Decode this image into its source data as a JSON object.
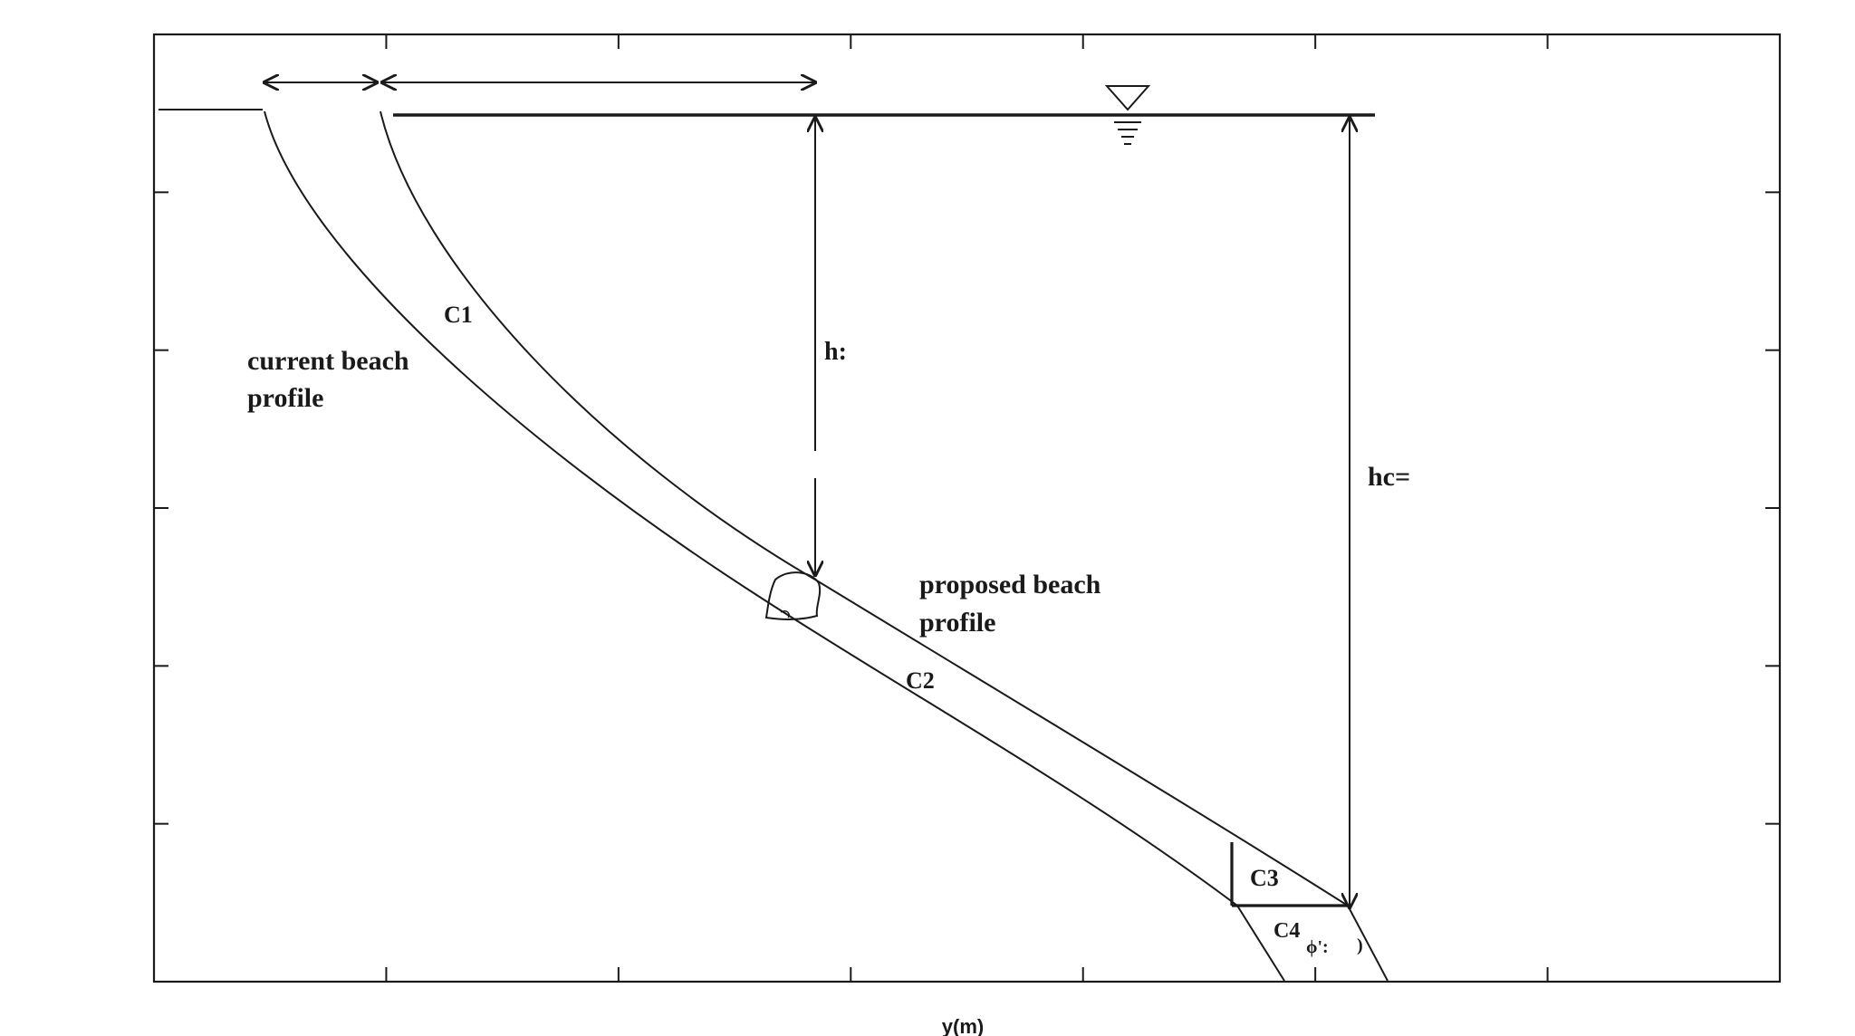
{
  "axis": {
    "xlabel": "y(m)"
  },
  "labels": {
    "current_profile": [
      "current beach",
      "profile"
    ],
    "proposed_profile": [
      "proposed beach",
      "profile"
    ],
    "c1": "C1",
    "c2": "C2",
    "c3": "C3",
    "c4": "C4",
    "h": "h:",
    "hc": "hc=",
    "phi": "ϕ':",
    "phi_close": ")"
  },
  "icons": {
    "water_level": "inverted-triangle-water-level-icon",
    "armor_stone": "rock-unit-icon"
  }
}
